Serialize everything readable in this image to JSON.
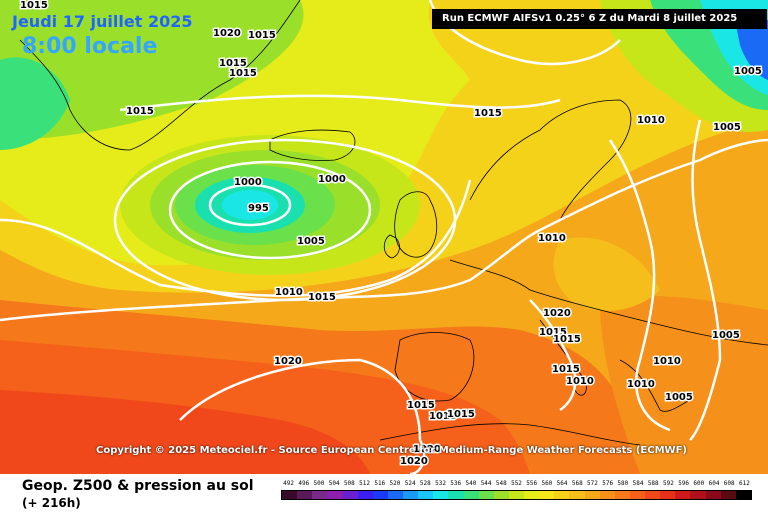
{
  "header": {
    "date": "Jeudi 17 juillet 2025",
    "time": "8:00 locale",
    "run_info": "Run ECMWF AIFSv1 0.25° 6 Z du Mardi 8 juillet 2025"
  },
  "copyright": "Copyright © 2025 Meteociel.fr - Source European Centre for Medium-Range Weather Forecasts (ECMWF)",
  "footer": {
    "field": "Geop. Z500 & pression au sol",
    "horizon": "(+ 216h)"
  },
  "legend": {
    "values": [
      "492",
      "496",
      "500",
      "504",
      "508",
      "512",
      "516",
      "520",
      "524",
      "528",
      "532",
      "536",
      "540",
      "544",
      "548",
      "552",
      "556",
      "560",
      "564",
      "568",
      "572",
      "576",
      "580",
      "584",
      "588",
      "592",
      "596",
      "600",
      "604",
      "608",
      "612"
    ],
    "colors": [
      "#3a0a2a",
      "#5a1a5a",
      "#7a2a8a",
      "#8c1fb0",
      "#6a1fd0",
      "#3a1ff0",
      "#1a3af5",
      "#1a6af5",
      "#1a9af5",
      "#1ac6f5",
      "#1ae6e6",
      "#1ae0b0",
      "#3ae07a",
      "#6ae04a",
      "#9ae02a",
      "#c6e61a",
      "#e6ec1a",
      "#f5e61a",
      "#f5d21a",
      "#f5be1a",
      "#f5a81a",
      "#f5901a",
      "#f5781a",
      "#f5601a",
      "#f0481a",
      "#e6301a",
      "#d01a1a",
      "#b0101a",
      "#8a0a1a",
      "#5a0a10",
      "#000000"
    ]
  },
  "isobars": [
    "1015",
    "1020",
    "1015",
    "1015",
    "1015",
    "1015",
    "1015",
    "1000",
    "1000",
    "995",
    "1005",
    "1010",
    "1015",
    "1020",
    "1015",
    "1015",
    "1015",
    "1015",
    "1020",
    "1005",
    "1005",
    "1010",
    "1005",
    "1010",
    "1015",
    "1015",
    "1010",
    "1010",
    "1010",
    "1005",
    "1020",
    "1020"
  ]
}
